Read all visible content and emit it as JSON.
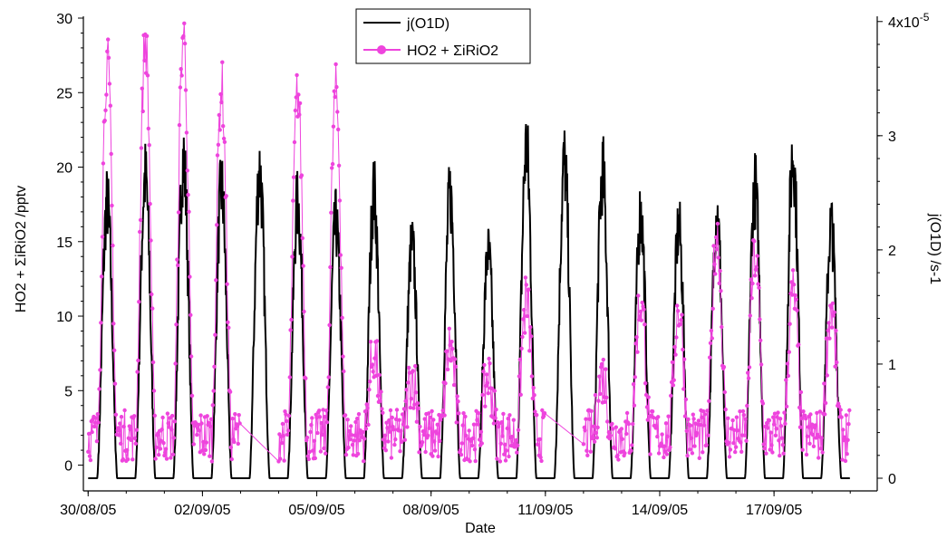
{
  "chart_data": {
    "type": "line",
    "xlabel": "Date",
    "ylabel_left": "HO2 + ΣiRiO2 /pptv",
    "ylabel_right": "j(O1D) /s-1",
    "x_range_days": [
      "2005-08-29T21:00",
      "2005-09-19T17:00"
    ],
    "x_tick_labels": [
      "30/08/05",
      "02/09/05",
      "05/09/05",
      "08/09/05",
      "11/09/05",
      "14/09/05",
      "17/09/05"
    ],
    "ylim_left": [
      -1,
      30
    ],
    "y_ticks_left": [
      "0",
      "5",
      "10",
      "15",
      "20",
      "25",
      "30"
    ],
    "ylim_right": [
      0,
      4.03e-05
    ],
    "y_ticks_right": [
      "0",
      "1",
      "2",
      "3",
      "4x10-5"
    ],
    "grid": false,
    "legend_position": "top-center",
    "colors": {
      "jO1D": "#000000",
      "hox": "#ee44dd"
    },
    "series": [
      {
        "name": "j(O1D)",
        "axis": "right",
        "style": "line",
        "daily_peaks": [
          {
            "date": "2005-08-30",
            "peak": 2.75e-05
          },
          {
            "date": "2005-08-31",
            "peak": 3e-05
          },
          {
            "date": "2005-09-01",
            "peak": 3.2e-05
          },
          {
            "date": "2005-09-02",
            "peak": 2.9e-05
          },
          {
            "date": "2005-09-03",
            "peak": 3.08e-05
          },
          {
            "date": "2005-09-04",
            "peak": 2.75e-05
          },
          {
            "date": "2005-09-05",
            "peak": 2.55e-05
          },
          {
            "date": "2005-09-06",
            "peak": 2.85e-05
          },
          {
            "date": "2005-09-07",
            "peak": 2.33e-05
          },
          {
            "date": "2005-09-08",
            "peak": 2.83e-05
          },
          {
            "date": "2005-09-09",
            "peak": 2.25e-05
          },
          {
            "date": "2005-09-10",
            "peak": 3.3e-05
          },
          {
            "date": "2005-09-11",
            "peak": 3.15e-05
          },
          {
            "date": "2005-09-12",
            "peak": 3.05e-05
          },
          {
            "date": "2005-09-13",
            "peak": 2.65e-05
          },
          {
            "date": "2005-09-14",
            "peak": 2.5e-05
          },
          {
            "date": "2005-09-15",
            "peak": 2.65e-05
          },
          {
            "date": "2005-09-16",
            "peak": 2.9e-05
          },
          {
            "date": "2005-09-17",
            "peak": 3.25e-05
          },
          {
            "date": "2005-09-18",
            "peak": 2.53e-05
          }
        ]
      },
      {
        "name": "HO2 + ΣiRiO2",
        "axis": "left",
        "style": "line+markers",
        "units": "pptv",
        "daily_peaks": [
          {
            "date": "2005-08-30",
            "peak": 27.0
          },
          {
            "date": "2005-08-31",
            "peak": 28.5
          },
          {
            "date": "2005-09-01",
            "peak": 29.0
          },
          {
            "date": "2005-09-02",
            "peak": 25.5
          },
          {
            "date": "2005-09-03",
            "peak": null
          },
          {
            "date": "2005-09-04",
            "peak": 25.0
          },
          {
            "date": "2005-09-05",
            "peak": 25.0
          },
          {
            "date": "2005-09-06",
            "peak": 7.5
          },
          {
            "date": "2005-09-07",
            "peak": 6.0
          },
          {
            "date": "2005-09-08",
            "peak": 8.0
          },
          {
            "date": "2005-09-09",
            "peak": 6.0
          },
          {
            "date": "2005-09-10",
            "peak": 11.0
          },
          {
            "date": "2005-09-11",
            "peak": null
          },
          {
            "date": "2005-09-12",
            "peak": 6.0
          },
          {
            "date": "2005-09-13",
            "peak": 11.0
          },
          {
            "date": "2005-09-14",
            "peak": 10.5
          },
          {
            "date": "2005-09-15",
            "peak": 15.5
          },
          {
            "date": "2005-09-16",
            "peak": 14.0
          },
          {
            "date": "2005-09-17",
            "peak": 11.5
          },
          {
            "date": "2005-09-18",
            "peak": 10.5
          }
        ],
        "night_level": 2.0
      }
    ]
  }
}
